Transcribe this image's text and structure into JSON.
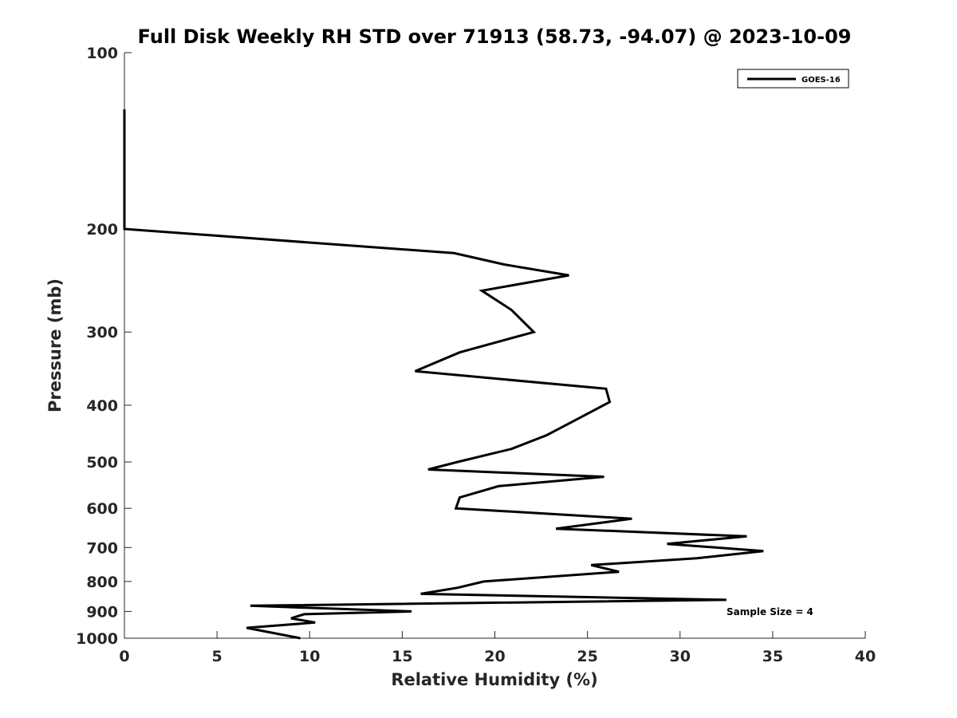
{
  "chart_data": {
    "type": "line",
    "title": "Full Disk Weekly RH STD over 71913 (58.73, -94.07) @ 2023-10-09",
    "xlabel": "Relative Humidity (%)",
    "ylabel": "Pressure (mb)",
    "xlim": [
      0,
      40
    ],
    "ylim": [
      100,
      1000
    ],
    "yscale": "log",
    "y_reversed": true,
    "xticks": [
      "0",
      "5",
      "10",
      "15",
      "20",
      "25",
      "30",
      "35",
      "40"
    ],
    "xtick_values": [
      0,
      5,
      10,
      15,
      20,
      25,
      30,
      35,
      40
    ],
    "yticks": [
      "100",
      "200",
      "300",
      "400",
      "500",
      "600",
      "700",
      "800",
      "900",
      "1000"
    ],
    "ytick_values": [
      100,
      200,
      300,
      400,
      500,
      600,
      700,
      800,
      900,
      1000
    ],
    "grid": false,
    "legend": {
      "position": "top-right",
      "entries": [
        "GOES-16"
      ]
    },
    "annotation": "Sample Size = 4",
    "series": [
      {
        "name": "GOES-16",
        "color": "#000000",
        "points": [
          [
            0.0,
            125
          ],
          [
            0.0,
            150
          ],
          [
            0.0,
            175
          ],
          [
            0.0,
            200
          ],
          [
            17.8,
            220
          ],
          [
            20.5,
            230
          ],
          [
            24.0,
            240
          ],
          [
            19.3,
            255
          ],
          [
            20.9,
            275
          ],
          [
            22.1,
            300
          ],
          [
            18.1,
            325
          ],
          [
            15.7,
            350
          ],
          [
            26.0,
            375
          ],
          [
            26.2,
            395
          ],
          [
            24.3,
            425
          ],
          [
            22.8,
            450
          ],
          [
            20.9,
            475
          ],
          [
            18.0,
            500
          ],
          [
            16.4,
            515
          ],
          [
            25.9,
            530
          ],
          [
            20.2,
            550
          ],
          [
            18.1,
            575
          ],
          [
            17.9,
            600
          ],
          [
            27.4,
            625
          ],
          [
            23.3,
            650
          ],
          [
            33.6,
            670
          ],
          [
            29.3,
            690
          ],
          [
            34.5,
            710
          ],
          [
            30.9,
            730
          ],
          [
            25.2,
            750
          ],
          [
            26.7,
            770
          ],
          [
            19.4,
            800
          ],
          [
            18.0,
            820
          ],
          [
            16.0,
            840
          ],
          [
            32.5,
            860
          ],
          [
            6.8,
            880
          ],
          [
            15.5,
            900
          ],
          [
            9.7,
            910
          ],
          [
            9.0,
            925
          ],
          [
            10.3,
            940
          ],
          [
            6.6,
            960
          ],
          [
            9.5,
            1000
          ]
        ]
      }
    ]
  }
}
